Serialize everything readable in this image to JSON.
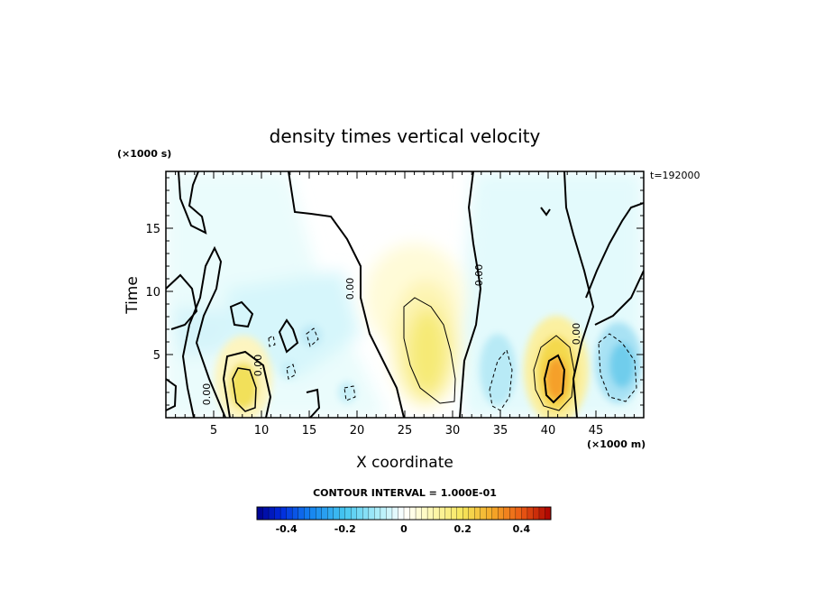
{
  "chart_data": {
    "type": "heatmap",
    "title": "density times vertical velocity",
    "xlabel": "X coordinate",
    "ylabel": "Time",
    "x_unit_label": "(×1000 m)",
    "y_unit_label": "(×1000 s)",
    "time_stamp": "t=192000",
    "xlim": [
      0,
      50
    ],
    "ylim": [
      0,
      19.5
    ],
    "x_ticks": [
      "5",
      "10",
      "15",
      "20",
      "25",
      "30",
      "35",
      "40",
      "45"
    ],
    "y_ticks": [
      "5",
      "10",
      "15"
    ],
    "contour_interval_text": "CONTOUR INTERVAL = 1.000E-01",
    "contour_zero_label": "0.00",
    "colorbar": {
      "range": [
        -0.5,
        0.5
      ],
      "tick_labels": [
        "-0.4",
        "-0.2",
        "0",
        "0.2",
        "0.4"
      ],
      "tick_values": [
        -0.4,
        -0.2,
        0,
        0.2,
        0.4
      ]
    },
    "features": [
      {
        "x": 8,
        "y": 3,
        "value": 0.18
      },
      {
        "x": 27.5,
        "y": 6,
        "value": 0.16
      },
      {
        "x": 40.5,
        "y": 3.5,
        "value": 0.33
      },
      {
        "x": 48,
        "y": 5,
        "value": -0.14
      },
      {
        "x": 35.5,
        "y": 3.5,
        "value": -0.1
      }
    ]
  }
}
